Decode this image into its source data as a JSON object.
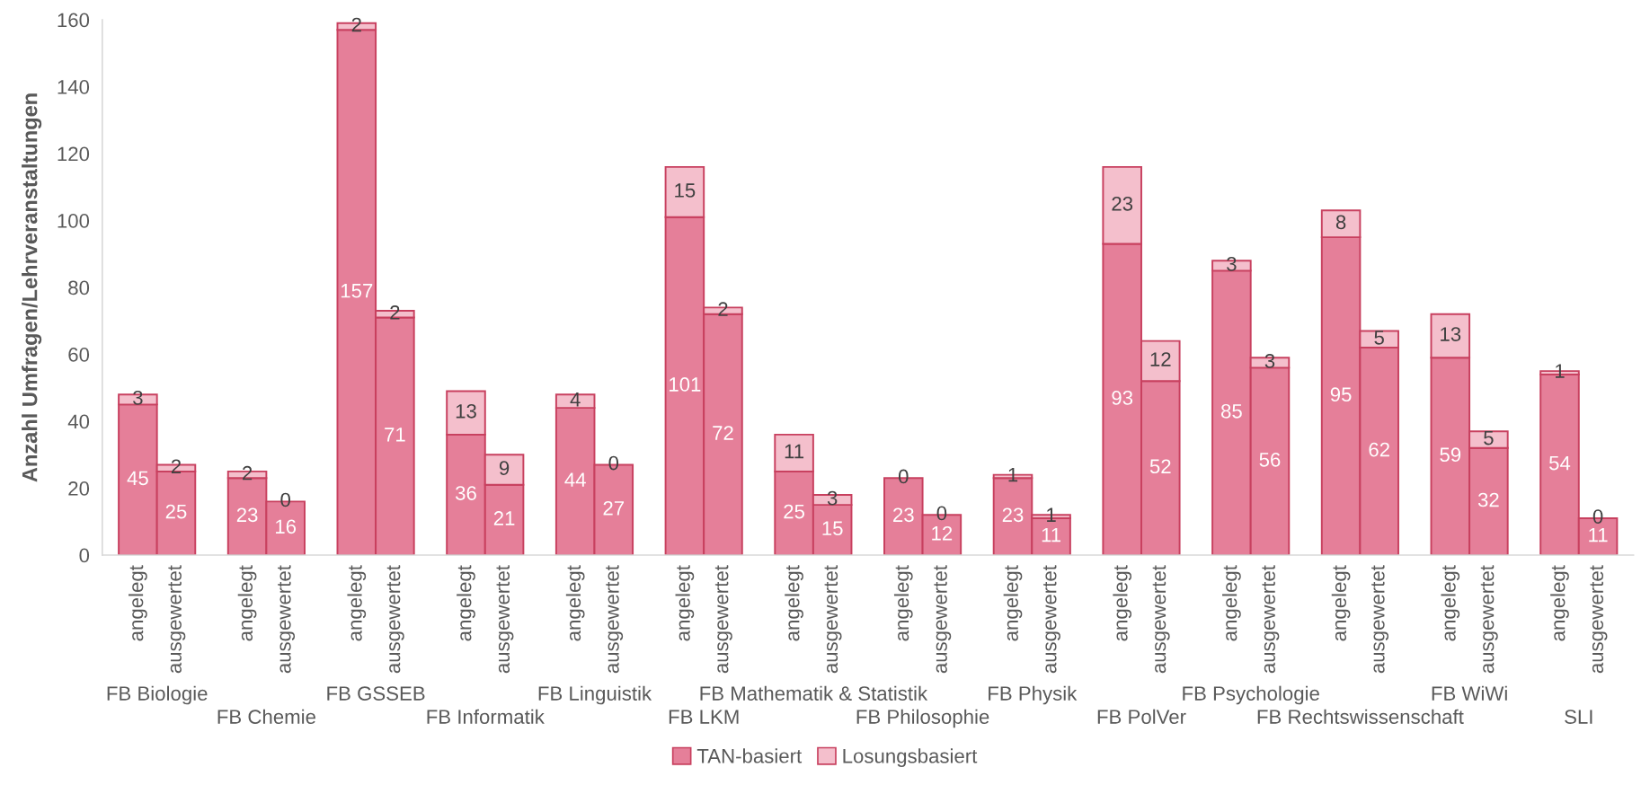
{
  "chart_data": {
    "type": "bar",
    "stacked": true,
    "categories": [
      "angelegt",
      "ausgewertet",
      "angelegt",
      "ausgewertet",
      "angelegt",
      "ausgewertet",
      "angelegt",
      "ausgewertet",
      "angelegt",
      "ausgewertet",
      "angelegt",
      "ausgewertet",
      "angelegt",
      "ausgewertet",
      "angelegt",
      "ausgewertet",
      "angelegt",
      "ausgewertet",
      "angelegt",
      "ausgewertet",
      "angelegt",
      "ausgewertet",
      "angelegt",
      "ausgewertet",
      "angelegt",
      "ausgewertet",
      "angelegt",
      "ausgewertet"
    ],
    "series": [
      {
        "name": "TAN-basiert",
        "color": "#e57f99",
        "values": [
          45,
          25,
          23,
          16,
          157,
          71,
          36,
          21,
          44,
          27,
          101,
          72,
          25,
          15,
          23,
          12,
          23,
          11,
          93,
          52,
          85,
          56,
          95,
          62,
          59,
          32,
          54,
          11
        ]
      },
      {
        "name": "Losungsbasiert",
        "color": "#f4bfcc",
        "values": [
          3,
          2,
          2,
          0,
          2,
          2,
          13,
          9,
          4,
          0,
          15,
          2,
          11,
          3,
          0,
          0,
          1,
          1,
          23,
          12,
          3,
          3,
          8,
          5,
          13,
          5,
          1,
          0
        ]
      }
    ],
    "ylabel": "Anzahl Umfragen/Lehrveranstaltungen",
    "ylim": [
      0,
      160
    ],
    "yticks": [
      0,
      20,
      40,
      60,
      80,
      100,
      120,
      140,
      160
    ],
    "data_labels": true,
    "legend": "bottom",
    "annotations": [
      "FB Biologie",
      "FB Chemie",
      "FB GSSEB",
      "FB Informatik",
      "FB Linguistik",
      "FB LKM",
      "FB Mathematik & Statistik",
      "FB Philosophie",
      "FB Physik",
      "FB PolVer",
      "FB Psychologie",
      "FB Rechtswissenschaft",
      "FB WiWi",
      "SLI"
    ]
  }
}
